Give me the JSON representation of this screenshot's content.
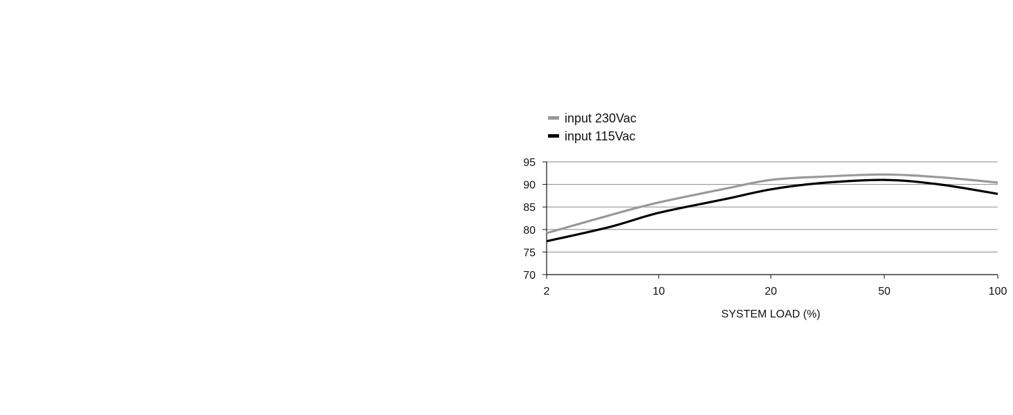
{
  "chart_data": {
    "type": "line",
    "title": "",
    "xlabel": "SYSTEM LOAD (%)",
    "ylabel": "",
    "x_ticks": [
      2,
      10,
      20,
      50,
      100
    ],
    "y_ticks": [
      70,
      75,
      80,
      85,
      90,
      95
    ],
    "ylim": [
      70,
      95
    ],
    "grid": "horizontal",
    "legend_position": "top-left",
    "series": [
      {
        "name": "input 230Vac",
        "color": "#999999",
        "x": [
          2,
          5,
          10,
          15,
          20,
          30,
          50,
          70,
          100
        ],
        "y": [
          79.2,
          83.2,
          86.0,
          89.0,
          91.0,
          91.7,
          92.2,
          91.6,
          90.4
        ]
      },
      {
        "name": "input 115Vac",
        "color": "#000000",
        "x": [
          2,
          5,
          10,
          15,
          20,
          30,
          50,
          70,
          100
        ],
        "y": [
          77.4,
          80.6,
          83.7,
          86.7,
          88.9,
          90.3,
          91.0,
          90.0,
          87.9
        ]
      }
    ]
  }
}
